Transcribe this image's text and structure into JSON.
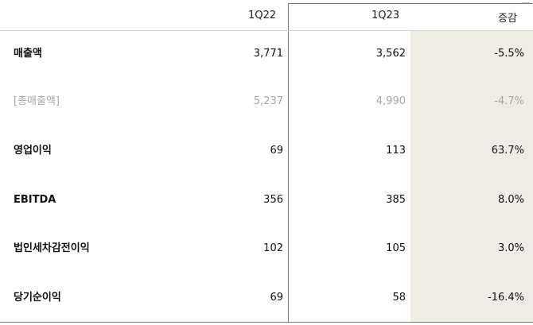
{
  "header": {
    "col_1q22": "1Q22",
    "col_1q23": "1Q23",
    "col_change": "증감"
  },
  "rows": [
    {
      "label": "매출액",
      "q22": "3,771",
      "q23": "3,562",
      "change": "-5.5%"
    },
    {
      "label": "[총매출액]",
      "q22": "5,237",
      "q23": "4,990",
      "change": "-4.7%"
    },
    {
      "label": "영업이익",
      "q22": "69",
      "q23": "113",
      "change": "63.7%"
    },
    {
      "label": "EBITDA",
      "q22": "356",
      "q23": "385",
      "change": "8.0%"
    },
    {
      "label": "법인세차감전이익",
      "q22": "102",
      "q23": "105",
      "change": "3.0%"
    },
    {
      "label": "당기순이익",
      "q22": "69",
      "q23": "58",
      "change": "-16.4%"
    }
  ],
  "colors": {
    "highlight_band": "#eeece3",
    "outline": "#7f7b63",
    "muted_text": "#a7a7a7"
  }
}
